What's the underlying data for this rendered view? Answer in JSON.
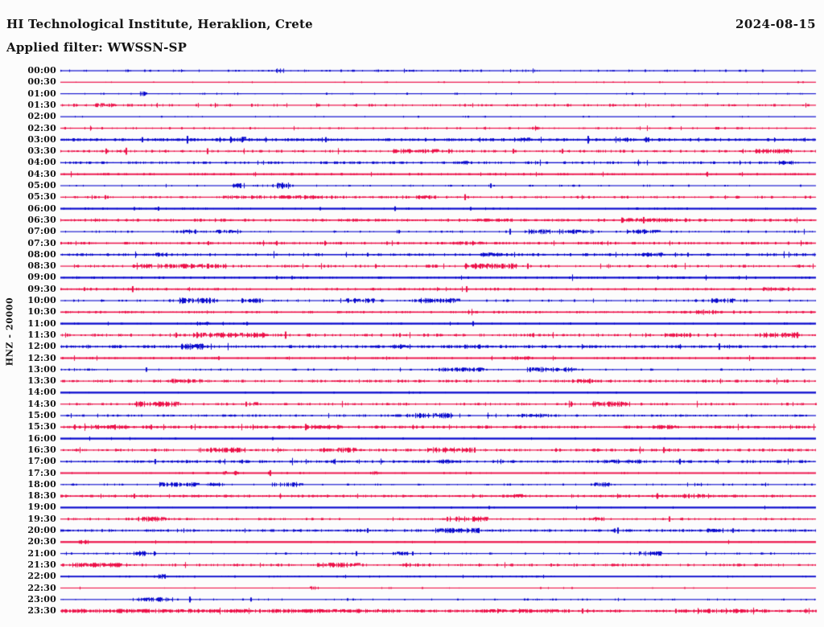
{
  "header": {
    "station_title": "HI Technological Institute, Heraklion, Crete",
    "filter_label": "Applied filter: WWSSN-SP",
    "date": "2024-08-15"
  },
  "axis": {
    "channel_label": "HNZ - 20000"
  },
  "colors": {
    "trace_blue": "#0a0acd",
    "trace_red": "#ec1048",
    "background": "#fcfcfc",
    "text": "#151515"
  },
  "chart_data": {
    "type": "line",
    "subtype": "helicorder-seismogram-drum-record",
    "title": "HI Technological Institute, Heraklion, Crete",
    "date": "2024-08-15",
    "filter": "WWSSN-SP",
    "channel": "HNZ",
    "scale": 20000,
    "row_interval_minutes": 30,
    "rows_count": 48,
    "grid": false,
    "legend_position": "none",
    "color_rule": "hour rows blue, half-hour rows red, alternating",
    "rows": [
      {
        "time": "00:00",
        "color": "blue",
        "den": 0.12,
        "amp": 1.0,
        "lw": 1.2,
        "bursts": [
          [
            0.285,
            0.012,
            1.8
          ]
        ]
      },
      {
        "time": "00:30",
        "color": "red",
        "den": 0.05,
        "amp": 0.8,
        "lw": 1.2,
        "bursts": []
      },
      {
        "time": "01:00",
        "color": "blue",
        "den": 0.07,
        "amp": 0.9,
        "lw": 1.1,
        "bursts": [
          [
            0.105,
            0.008,
            2.0
          ]
        ]
      },
      {
        "time": "01:30",
        "color": "red",
        "den": 0.22,
        "amp": 1.1,
        "lw": 1.2,
        "bursts": [
          [
            0.045,
            0.025,
            1.6
          ]
        ]
      },
      {
        "time": "02:00",
        "color": "blue",
        "den": 0.05,
        "amp": 0.8,
        "lw": 1.2,
        "bursts": []
      },
      {
        "time": "02:30",
        "color": "red",
        "den": 0.18,
        "amp": 1.0,
        "lw": 1.2,
        "bursts": [
          [
            0.625,
            0.008,
            2.2
          ]
        ]
      },
      {
        "time": "03:00",
        "color": "blue",
        "den": 0.45,
        "amp": 1.2,
        "lw": 1.8,
        "bursts": [
          [
            0.225,
            0.018,
            3.2
          ],
          [
            0.6,
            0.025,
            2.2
          ],
          [
            0.74,
            0.02,
            1.8
          ]
        ]
      },
      {
        "time": "03:30",
        "color": "red",
        "den": 0.28,
        "amp": 1.1,
        "lw": 1.2,
        "bursts": [
          [
            0.44,
            0.08,
            1.8
          ],
          [
            0.92,
            0.05,
            1.8
          ]
        ]
      },
      {
        "time": "04:00",
        "color": "blue",
        "den": 0.32,
        "amp": 1.1,
        "lw": 1.3,
        "bursts": [
          [
            0.52,
            0.02,
            1.6
          ],
          [
            0.95,
            0.02,
            1.6
          ]
        ]
      },
      {
        "time": "04:30",
        "color": "red",
        "den": 0.25,
        "amp": 1.0,
        "lw": 1.9,
        "bursts": [
          [
            0.05,
            0.015,
            1.6
          ]
        ]
      },
      {
        "time": "05:00",
        "color": "blue",
        "den": 0.1,
        "amp": 0.9,
        "lw": 1.1,
        "bursts": [
          [
            0.225,
            0.012,
            1.8
          ],
          [
            0.28,
            0.025,
            2.4
          ]
        ]
      },
      {
        "time": "05:30",
        "color": "red",
        "den": 0.28,
        "amp": 1.1,
        "lw": 1.2,
        "bursts": [
          [
            0.21,
            0.14,
            1.5
          ],
          [
            0.47,
            0.03,
            1.5
          ]
        ]
      },
      {
        "time": "06:00",
        "color": "blue",
        "den": 0.14,
        "amp": 0.9,
        "lw": 2.2,
        "bursts": []
      },
      {
        "time": "06:30",
        "color": "red",
        "den": 0.38,
        "amp": 1.2,
        "lw": 1.5,
        "bursts": [
          [
            0.55,
            0.05,
            1.5
          ],
          [
            0.75,
            0.06,
            1.6
          ]
        ]
      },
      {
        "time": "07:00",
        "color": "blue",
        "den": 0.13,
        "amp": 1.0,
        "lw": 1.1,
        "bursts": [
          [
            0.16,
            0.02,
            1.8
          ],
          [
            0.205,
            0.035,
            1.8
          ],
          [
            0.615,
            0.09,
            2.0
          ],
          [
            0.75,
            0.04,
            1.8
          ]
        ]
      },
      {
        "time": "07:30",
        "color": "red",
        "den": 0.36,
        "amp": 1.1,
        "lw": 1.5,
        "bursts": [
          [
            0.52,
            0.04,
            1.5
          ]
        ]
      },
      {
        "time": "08:00",
        "color": "blue",
        "den": 0.32,
        "amp": 1.2,
        "lw": 1.5,
        "bursts": [
          [
            0.12,
            0.03,
            1.6
          ],
          [
            0.555,
            0.03,
            1.9
          ],
          [
            0.77,
            0.025,
            1.9
          ]
        ]
      },
      {
        "time": "08:30",
        "color": "red",
        "den": 0.26,
        "amp": 1.2,
        "lw": 1.2,
        "bursts": [
          [
            0.095,
            0.125,
            2.0
          ],
          [
            0.535,
            0.07,
            2.2
          ]
        ]
      },
      {
        "time": "09:00",
        "color": "blue",
        "den": 0.22,
        "amp": 1.0,
        "lw": 2.2,
        "bursts": []
      },
      {
        "time": "09:30",
        "color": "red",
        "den": 0.3,
        "amp": 1.1,
        "lw": 1.6,
        "bursts": [
          [
            0.93,
            0.04,
            1.6
          ]
        ]
      },
      {
        "time": "10:00",
        "color": "blue",
        "den": 0.18,
        "amp": 1.1,
        "lw": 1.1,
        "bursts": [
          [
            0.155,
            0.05,
            2.3
          ],
          [
            0.24,
            0.03,
            1.9
          ],
          [
            0.375,
            0.04,
            2.0
          ],
          [
            0.475,
            0.05,
            2.1
          ],
          [
            0.86,
            0.03,
            1.8
          ]
        ]
      },
      {
        "time": "10:30",
        "color": "red",
        "den": 0.28,
        "amp": 1.0,
        "lw": 1.6,
        "bursts": [
          [
            0.84,
            0.03,
            1.6
          ]
        ]
      },
      {
        "time": "11:00",
        "color": "blue",
        "den": 0.1,
        "amp": 0.9,
        "lw": 2.3,
        "bursts": [
          [
            0.08,
            0.01,
            1.6
          ],
          [
            0.18,
            0.015,
            1.6
          ]
        ]
      },
      {
        "time": "11:30",
        "color": "red",
        "den": 0.3,
        "amp": 1.2,
        "lw": 1.2,
        "bursts": [
          [
            0.175,
            0.1,
            2.3
          ],
          [
            0.8,
            0.035,
            2.0
          ],
          [
            0.925,
            0.05,
            2.2
          ]
        ]
      },
      {
        "time": "12:00",
        "color": "blue",
        "den": 0.45,
        "amp": 1.2,
        "lw": 1.5,
        "bursts": [
          [
            0.16,
            0.03,
            2.6
          ],
          [
            0.44,
            0.02,
            1.8
          ],
          [
            0.535,
            0.03,
            1.8
          ]
        ]
      },
      {
        "time": "12:30",
        "color": "red",
        "den": 0.22,
        "amp": 1.0,
        "lw": 1.9,
        "bursts": [
          [
            0.6,
            0.03,
            1.5
          ]
        ]
      },
      {
        "time": "13:00",
        "color": "blue",
        "den": 0.13,
        "amp": 0.9,
        "lw": 1.1,
        "bursts": [
          [
            0.5,
            0.06,
            1.6
          ],
          [
            0.615,
            0.065,
            2.0
          ]
        ]
      },
      {
        "time": "13:30",
        "color": "red",
        "den": 0.42,
        "amp": 1.2,
        "lw": 1.2,
        "bursts": [
          [
            0.145,
            0.04,
            2.0
          ],
          [
            0.675,
            0.03,
            2.0
          ]
        ]
      },
      {
        "time": "14:00",
        "color": "blue",
        "den": 0.07,
        "amp": 0.8,
        "lw": 2.3,
        "bursts": []
      },
      {
        "time": "14:30",
        "color": "red",
        "den": 0.27,
        "amp": 1.1,
        "lw": 1.2,
        "bursts": [
          [
            0.1,
            0.06,
            2.2
          ],
          [
            0.25,
            0.012,
            1.6
          ],
          [
            0.705,
            0.05,
            2.2
          ]
        ]
      },
      {
        "time": "15:00",
        "color": "blue",
        "den": 0.27,
        "amp": 1.0,
        "lw": 1.2,
        "bursts": [
          [
            0.47,
            0.05,
            2.2
          ],
          [
            0.61,
            0.03,
            1.6
          ]
        ]
      },
      {
        "time": "15:30",
        "color": "red",
        "den": 0.45,
        "amp": 1.2,
        "lw": 1.5,
        "bursts": [
          [
            0.04,
            0.05,
            1.8
          ],
          [
            0.33,
            0.04,
            1.8
          ],
          [
            0.78,
            0.035,
            1.8
          ]
        ]
      },
      {
        "time": "16:00",
        "color": "blue",
        "den": 0.08,
        "amp": 0.8,
        "lw": 2.3,
        "bursts": []
      },
      {
        "time": "16:30",
        "color": "red",
        "den": 0.38,
        "amp": 1.2,
        "lw": 1.2,
        "bursts": [
          [
            0.195,
            0.05,
            2.0
          ],
          [
            0.345,
            0.045,
            2.0
          ],
          [
            0.485,
            0.06,
            2.2
          ]
        ]
      },
      {
        "time": "17:00",
        "color": "blue",
        "den": 0.4,
        "amp": 1.1,
        "lw": 1.3,
        "bursts": [
          [
            0.495,
            0.025,
            1.7
          ],
          [
            0.72,
            0.05,
            1.8
          ]
        ]
      },
      {
        "time": "17:30",
        "color": "red",
        "den": 0.13,
        "amp": 0.9,
        "lw": 1.9,
        "bursts": [
          [
            0.215,
            0.02,
            1.7
          ],
          [
            0.41,
            0.015,
            1.6
          ]
        ]
      },
      {
        "time": "18:00",
        "color": "blue",
        "den": 0.13,
        "amp": 0.9,
        "lw": 1.1,
        "bursts": [
          [
            0.13,
            0.05,
            1.9
          ],
          [
            0.195,
            0.02,
            1.6
          ],
          [
            0.28,
            0.04,
            2.0
          ],
          [
            0.7,
            0.03,
            1.8
          ]
        ]
      },
      {
        "time": "18:30",
        "color": "red",
        "den": 0.42,
        "amp": 1.1,
        "lw": 1.5,
        "bursts": [
          [
            0.595,
            0.03,
            1.8
          ],
          [
            0.825,
            0.04,
            1.8
          ]
        ]
      },
      {
        "time": "19:00",
        "color": "blue",
        "den": 0.07,
        "amp": 0.8,
        "lw": 2.2,
        "bursts": []
      },
      {
        "time": "19:30",
        "color": "red",
        "den": 0.22,
        "amp": 1.0,
        "lw": 1.2,
        "bursts": [
          [
            0.1,
            0.045,
            2.0
          ],
          [
            0.515,
            0.05,
            2.2
          ],
          [
            0.7,
            0.02,
            1.7
          ]
        ]
      },
      {
        "time": "20:00",
        "color": "blue",
        "den": 0.4,
        "amp": 1.1,
        "lw": 1.3,
        "bursts": [
          [
            0.495,
            0.06,
            2.0
          ],
          [
            0.855,
            0.02,
            1.6
          ]
        ]
      },
      {
        "time": "20:30",
        "color": "red",
        "den": 0.1,
        "amp": 0.8,
        "lw": 2.2,
        "bursts": [
          [
            0.025,
            0.012,
            1.8
          ]
        ]
      },
      {
        "time": "21:00",
        "color": "blue",
        "den": 0.13,
        "amp": 0.9,
        "lw": 1.1,
        "bursts": [
          [
            0.095,
            0.035,
            2.0
          ],
          [
            0.44,
            0.02,
            1.6
          ],
          [
            0.765,
            0.03,
            1.8
          ]
        ]
      },
      {
        "time": "21:30",
        "color": "red",
        "den": 0.3,
        "amp": 1.1,
        "lw": 1.2,
        "bursts": [
          [
            0.02,
            0.06,
            2.0
          ],
          [
            0.34,
            0.055,
            2.0
          ],
          [
            0.455,
            0.02,
            1.6
          ]
        ]
      },
      {
        "time": "22:00",
        "color": "blue",
        "den": 0.11,
        "amp": 0.9,
        "lw": 1.9,
        "bursts": [
          [
            0.13,
            0.01,
            2.2
          ]
        ]
      },
      {
        "time": "22:30",
        "color": "red",
        "den": 0.05,
        "amp": 0.8,
        "lw": 1.1,
        "bursts": [
          [
            0.33,
            0.012,
            1.6
          ]
        ]
      },
      {
        "time": "23:00",
        "color": "blue",
        "den": 0.09,
        "amp": 0.9,
        "lw": 1.1,
        "bursts": [
          [
            0.095,
            0.05,
            1.6
          ]
        ]
      },
      {
        "time": "23:30",
        "color": "red",
        "den": 0.5,
        "amp": 1.2,
        "lw": 1.4,
        "bursts": [
          [
            0.0,
            0.45,
            1.6
          ],
          [
            0.55,
            0.12,
            1.5
          ],
          [
            0.82,
            0.12,
            1.5
          ]
        ]
      }
    ]
  }
}
